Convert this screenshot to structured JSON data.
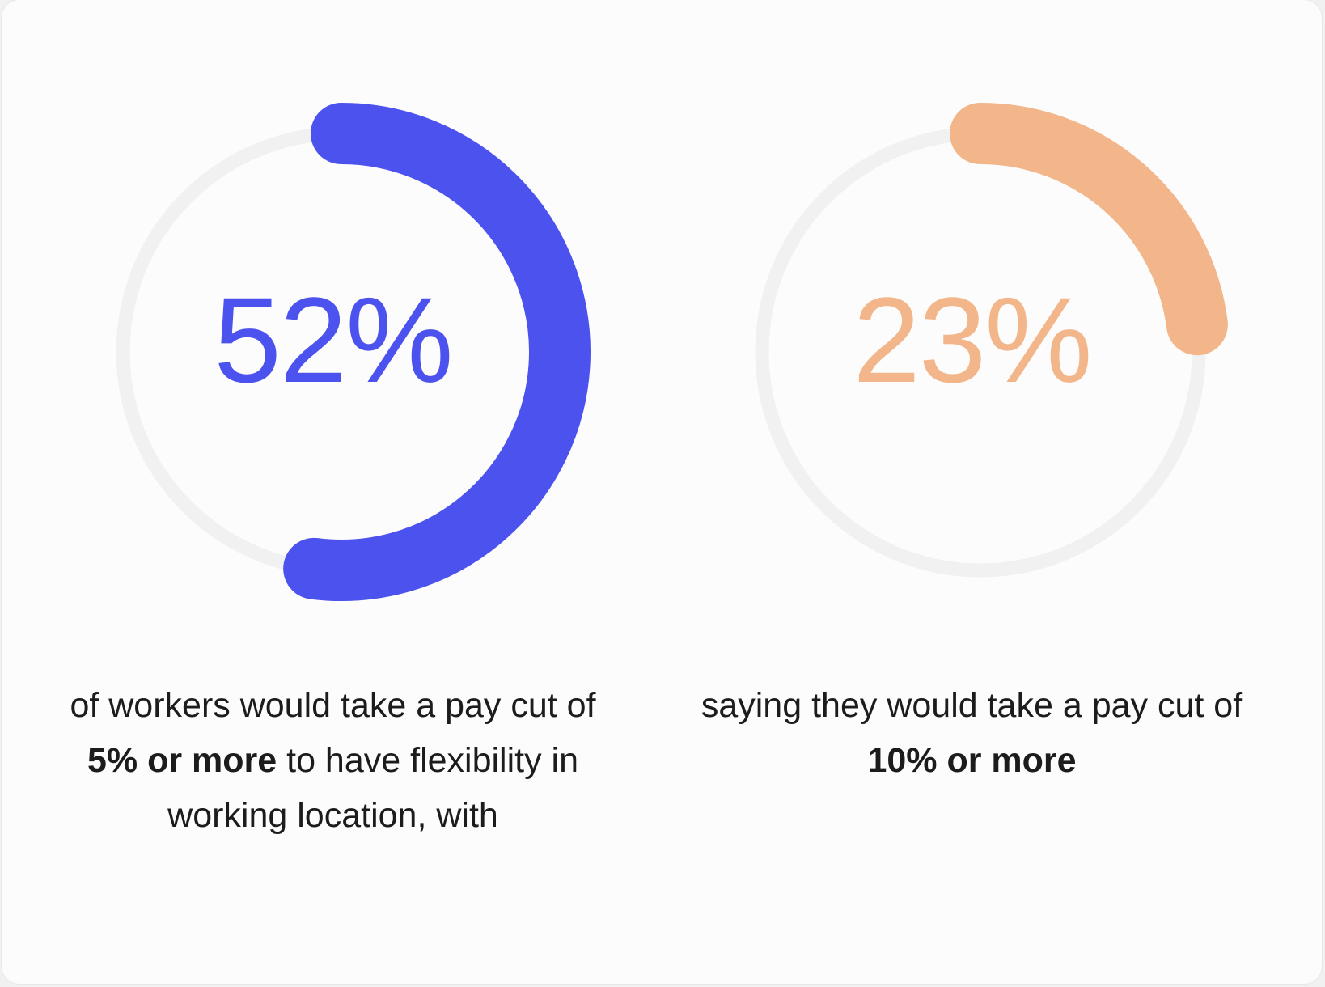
{
  "chart_data": [
    {
      "type": "donut",
      "value": 52,
      "max": 100,
      "label": "52%",
      "color": "#4c52ee",
      "track_color": "#f1f1f1",
      "caption": {
        "prefix": "of workers would take a pay cut of ",
        "bold": "5% or more",
        "suffix": " to have flexibility in working location, with"
      }
    },
    {
      "type": "donut",
      "value": 23,
      "max": 100,
      "label": "23%",
      "color": "#f2b68a",
      "track_color": "#f1f1f1",
      "caption": {
        "prefix": "saying they would take a pay cut of ",
        "bold": "10% or more",
        "suffix": ""
      }
    }
  ]
}
